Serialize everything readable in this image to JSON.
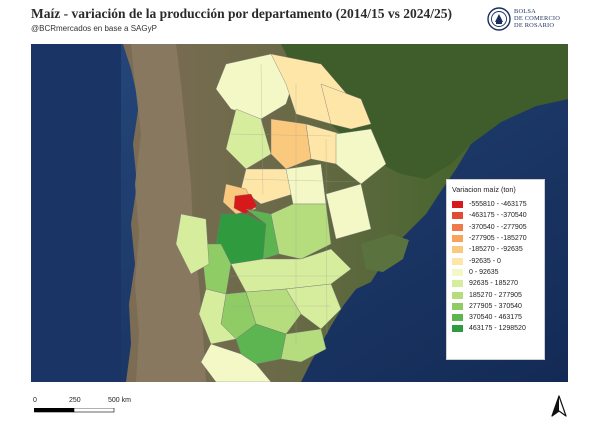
{
  "header": {
    "title": "Maíz - variación de la producción por departamento (2014/15 vs 2024/25)",
    "subtitle": "@BCRmercados en base a SAGyP"
  },
  "logo": {
    "line1": "BOLSA",
    "line2": "DE COMERCIO",
    "line3": "DE ROSARIO",
    "color": "#1c2f5a"
  },
  "legend": {
    "title": "Variacion maíz (ton)",
    "items": [
      {
        "label": "-555810 - -463175",
        "color": "#d7191c"
      },
      {
        "label": "-463175 - -370540",
        "color": "#e34a33"
      },
      {
        "label": "-370540 - -277905",
        "color": "#f0784a"
      },
      {
        "label": "-277905 - -185270",
        "color": "#f7a35c"
      },
      {
        "label": "-185270 - -92635",
        "color": "#fbc97e"
      },
      {
        "label": "-92635 - 0",
        "color": "#fde6a8"
      },
      {
        "label": "0 - 92635",
        "color": "#f3f8c6"
      },
      {
        "label": "92635 - 185270",
        "color": "#d7ed9e"
      },
      {
        "label": "185270 - 277905",
        "color": "#b5dd7e"
      },
      {
        "label": "277905 - 370540",
        "color": "#8fcc66"
      },
      {
        "label": "370540 - 463175",
        "color": "#5db552"
      },
      {
        "label": "463175 - 1298520",
        "color": "#2f9a3e"
      }
    ]
  },
  "scale": {
    "labels": [
      "0",
      "250",
      "500 km"
    ]
  },
  "colors": {
    "ocean": "#1f3f73",
    "deep_ocean": "#16305e",
    "andes": "#8b7a62",
    "land_dark": "#3d5a2a",
    "land_mid": "#56703a"
  },
  "icons": {
    "north_arrow": "north-arrow-icon",
    "logo": "bcr-emblem-icon"
  }
}
